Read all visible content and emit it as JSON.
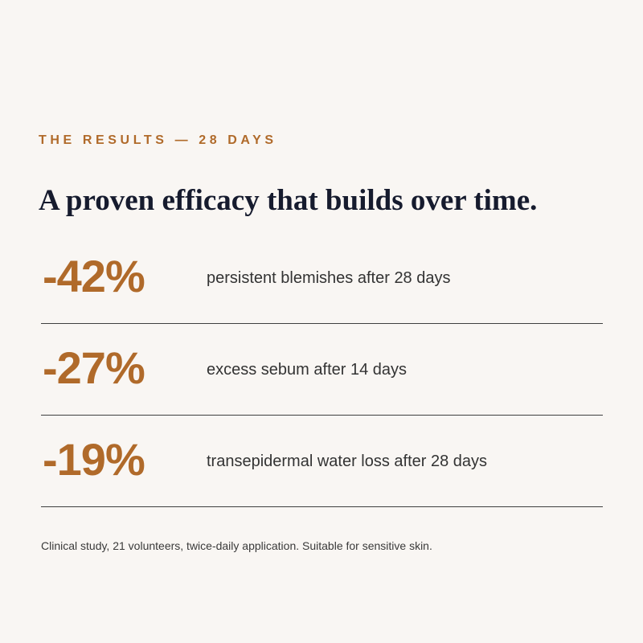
{
  "eyebrow": "THE RESULTS — 28 DAYS",
  "headline": "A proven efficacy that builds over time.",
  "stats": [
    {
      "value": "-42%",
      "description": "persistent blemishes after 28 days"
    },
    {
      "value": "-27%",
      "description": "excess sebum after 14 days"
    },
    {
      "value": "-19%",
      "description": "transepidermal water loss after 28 days"
    }
  ],
  "footnote": "Clinical study, 21 volunteers, twice-daily application. Suitable for sensitive skin.",
  "colors": {
    "accent": "#b06a2a",
    "headline": "#161b2e",
    "background": "#f9f6f3",
    "body_text": "#333333",
    "divider": "#3f3f3f"
  }
}
